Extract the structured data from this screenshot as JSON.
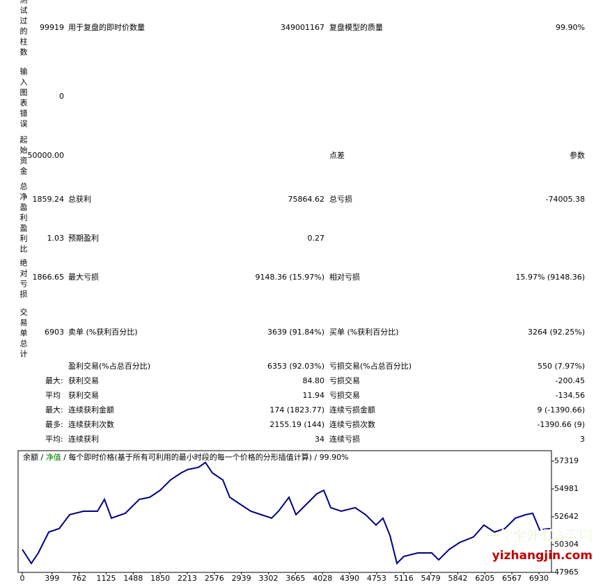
{
  "report": {
    "rows": [
      {
        "heading": "测试过的柱数",
        "value": "99919",
        "label1": "用于复盘的即时价数量",
        "value1": "349001167",
        "label2": "复盘模型的质量",
        "value2": "99.90%"
      },
      {
        "heading": "输入图表错误",
        "value": "0"
      },
      {
        "heading": "起始资金",
        "value": "50000.00",
        "label2": "点差",
        "value2": "参数"
      },
      {
        "heading": "总净盈利",
        "value": "1859.24",
        "label1": "总获利",
        "value1": "75864.62",
        "label2": "总亏损",
        "value2": "-74005.38"
      },
      {
        "heading": "盈利比",
        "value": "1.03",
        "label1": "预期盈利",
        "value1": "0.27"
      },
      {
        "heading": "绝对亏损",
        "value": "1866.65",
        "label1": "最大亏损",
        "value1": "9148.36 (15.97%)",
        "label2": "相对亏损",
        "value2": "15.97% (9148.36)"
      },
      {
        "heading": "交易单总计",
        "value": "6903",
        "label1": "卖单 (%获利百分比)",
        "value1": "3639 (91.84%)",
        "label2": "买单 (%获利百分比)",
        "value2": "3264 (92.25%)"
      },
      {
        "label1": "盈利交易(%占总百分比)",
        "value1": "6353 (92.03%)",
        "label2": "亏损交易(%占总百分比)",
        "value2": "550 (7.97%)"
      },
      {
        "prefix": "最大:",
        "label1": "获利交易",
        "value1": "84.80",
        "label2": "亏损交易",
        "value2": "-200.45"
      },
      {
        "prefix": "平均",
        "label1": "获利交易",
        "value1": "11.94",
        "label2": "亏损交易",
        "value2": "-134.56"
      },
      {
        "prefix": "最大:",
        "label1": "连续获利金额",
        "value1": "174 (1823.77)",
        "label2": "连续亏损金额",
        "value2": "9 (-1390.66)"
      },
      {
        "prefix": "最多:",
        "label1": "连续获利次数",
        "value1": "2155.19 (144)",
        "label2": "连续亏损次数",
        "value2": "-1390.66 (9)"
      },
      {
        "prefix": "平均:",
        "label1": "连续获利",
        "value1": "34",
        "label2": "连续亏损",
        "value2": "3"
      }
    ]
  },
  "chart_data": {
    "type": "line",
    "legend": [
      {
        "text": "余额",
        "color": "#000000"
      },
      {
        "text": "净值",
        "color": "#008000"
      }
    ],
    "separator": "/",
    "subtitle": "每个即时价格(基于所有可利用的最小时段的每一个价格的分形插值计算)",
    "quality": "99.90%",
    "color": "#000080",
    "x": [
      0,
      121,
      215,
      355,
      495,
      635,
      822,
      1009,
      1102,
      1196,
      1382,
      1569,
      1709,
      1849,
      1989,
      2130,
      2223,
      2363,
      2456,
      2550,
      2690,
      2783,
      2923,
      3064,
      3204,
      3344,
      3437,
      3577,
      3671,
      3811,
      3951,
      4044,
      4138,
      4278,
      4465,
      4605,
      4745,
      4838,
      4932,
      5025,
      5118,
      5305,
      5492,
      5585,
      5725,
      5866,
      6052,
      6192,
      6333,
      6473,
      6613,
      6753,
      6846,
      6940,
      7080
    ],
    "values": [
      49895,
      48725,
      49602,
      51356,
      51648,
      52818,
      53110,
      53110,
      54104,
      52525,
      52934,
      54104,
      54279,
      54864,
      55741,
      56325,
      56617,
      56793,
      57202,
      56325,
      55741,
      54279,
      53694,
      53110,
      52818,
      52525,
      53110,
      54279,
      52818,
      53694,
      54571,
      54864,
      53402,
      53110,
      53402,
      52818,
      51941,
      52525,
      51064,
      48725,
      49310,
      49602,
      49602,
      49018,
      49895,
      50479,
      50947,
      51941,
      51356,
      51648,
      52525,
      52818,
      52934,
      51531,
      51648
    ],
    "xlim": [
      -56,
      7098
    ],
    "ylim": [
      47965,
      58196
    ],
    "xticks": [
      0,
      399,
      762,
      1125,
      1488,
      1850,
      2213,
      2576,
      2939,
      3302,
      3665,
      4028,
      4390,
      4753,
      5116,
      5479,
      5842,
      6205,
      6567,
      6930
    ],
    "yticks": [
      47965,
      50304,
      52642,
      54981,
      57319
    ],
    "watermark": [
      "一掌金外汇资源网",
      "yizhangjin.com"
    ]
  }
}
